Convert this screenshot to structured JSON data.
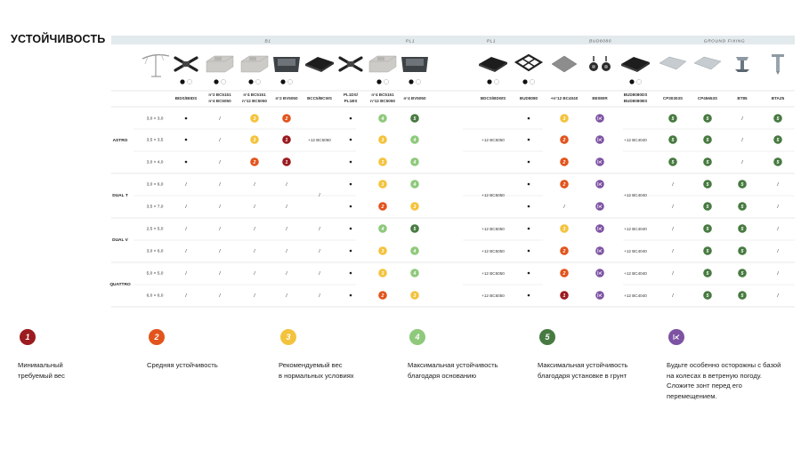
{
  "title": "УСТОЙЧИВОСТЬ",
  "groups": [
    {
      "label": "B1",
      "from": 0,
      "to": 6
    },
    {
      "label": "PL1",
      "from": 6,
      "to": 9
    },
    {
      "label": "PL1",
      "from": 9,
      "to": 10
    },
    {
      "label": "BUD8080",
      "from": 10,
      "to": 13
    },
    {
      "label": "GROUND FIXING",
      "from": 13,
      "to": 18
    }
  ],
  "columns": [
    {
      "h": [
        "BIDS/IBIDS"
      ],
      "img": "cross-base-icon",
      "dots": true
    },
    {
      "h": [
        "n°2 BC5151",
        "n°4 BC5050"
      ],
      "img": "concrete-slab-icon",
      "dots": true
    },
    {
      "h": [
        "n°4 BC5151",
        "n°12 BC5050"
      ],
      "img": "concrete-slab-icon",
      "dots": true
    },
    {
      "h": [
        "n°2 BV5050"
      ],
      "img": "planter-base-icon",
      "dots": true
    },
    {
      "h": [
        "BCC5/BCWS"
      ],
      "img": "black-cover-icon",
      "dots": false
    },
    {
      "h": [
        "PL1DS/",
        "PL1BS"
      ],
      "img": "cross-base-icon",
      "dots": false
    },
    {
      "h": [
        "n°4 BC5151",
        "n°12 BC5050"
      ],
      "img": "concrete-slab-icon",
      "dots": true
    },
    {
      "h": [
        "n°4 BV5050"
      ],
      "img": "planter-base-icon",
      "dots": true
    },
    {
      "h": [
        "BDCS/BDWS"
      ],
      "img": "black-cover-icon",
      "dots": true
    },
    {
      "h": [
        "BUD8080"
      ],
      "img": "frame-base-icon",
      "dots": true
    },
    {
      "h": [
        "+n°12 BC4040"
      ],
      "img": "grey-plate-icon",
      "dots": false
    },
    {
      "h": [
        "BE080R"
      ],
      "img": "wheels-icon",
      "dots": false
    },
    {
      "h": [
        "BUD8080DS",
        "BUD8080BS"
      ],
      "img": "black-cover-icon",
      "dots": true
    },
    {
      "h": [
        "CP30303S"
      ],
      "img": "ground-plate-icon",
      "dots": false
    },
    {
      "h": [
        "CP45653S"
      ],
      "img": "ground-plate-icon",
      "dots": false
    },
    {
      "h": [
        "BT85"
      ],
      "img": "bracket-icon",
      "dots": false
    },
    {
      "h": [
        "BTAZ5"
      ],
      "img": "ground-spike-icon",
      "dots": false
    }
  ],
  "models": [
    {
      "name": "ASTRO",
      "rows": [
        0,
        2
      ]
    },
    {
      "name": "DUAL T",
      "rows": [
        3,
        4
      ]
    },
    {
      "name": "DUAL V",
      "rows": [
        5,
        6
      ]
    },
    {
      "name": "QUATTRO",
      "rows": [
        7,
        8
      ]
    }
  ],
  "merged": [
    {
      "col": 4,
      "from": 0,
      "to": 2,
      "text": "+12 BC5050"
    },
    {
      "col": 4,
      "from": 3,
      "to": 4,
      "text": "/"
    },
    {
      "col": 8,
      "from": 0,
      "to": 2,
      "text": "+12 BC5050"
    },
    {
      "col": 12,
      "from": 0,
      "to": 2,
      "text": "+12 BC4040"
    },
    {
      "col": 8,
      "from": 3,
      "to": 4,
      "text": "+12 BC5050"
    },
    {
      "col": 12,
      "from": 3,
      "to": 4,
      "text": "+12 BC4040"
    }
  ],
  "rows": [
    {
      "size": "3,0 × 3,0",
      "cells": [
        "•",
        "/",
        "3",
        "2",
        null,
        "•",
        "4",
        "5",
        null,
        "•",
        "3",
        "R",
        null,
        "5",
        "5",
        "/",
        "5"
      ]
    },
    {
      "size": "3,5 × 3,5",
      "cells": [
        "•",
        "/",
        "3",
        "1",
        null,
        "•",
        "3",
        "4",
        null,
        "•",
        "2",
        "R",
        null,
        "5",
        "5",
        "/",
        "5"
      ]
    },
    {
      "size": "3,0 × 4,0",
      "cells": [
        "•",
        "/",
        "2",
        "1",
        null,
        "•",
        "3",
        "4",
        null,
        "•",
        "2",
        "R",
        null,
        "5",
        "5",
        "/",
        "5"
      ]
    },
    {
      "size": "3,0 × 6,0",
      "cells": [
        "/",
        "/",
        "/",
        "/",
        null,
        "•",
        "3",
        "4",
        null,
        "•",
        "2",
        "R",
        null,
        "/",
        "5",
        "5",
        "/"
      ]
    },
    {
      "size": "3,5 × 7,0",
      "cells": [
        "/",
        "/",
        "/",
        "/",
        null,
        "•",
        "2",
        "3",
        null,
        "•",
        "/",
        "R",
        null,
        "/",
        "5",
        "5",
        "/"
      ]
    },
    {
      "size": "2,5 × 5,0",
      "cells": [
        "/",
        "/",
        "/",
        "/",
        "/",
        "•",
        "4",
        "5",
        "+12 BC5050",
        "•",
        "3",
        "R",
        "+12 BC4040",
        "/",
        "5",
        "5",
        "/"
      ]
    },
    {
      "size": "3,0 × 6,0",
      "cells": [
        "/",
        "/",
        "/",
        "/",
        "/",
        "•",
        "3",
        "4",
        "+12 BC5050",
        "•",
        "2",
        "R",
        "+12 BC4040",
        "/",
        "5",
        "5",
        "/"
      ]
    },
    {
      "size": "5,0 × 5,0",
      "cells": [
        "/",
        "/",
        "/",
        "/",
        "/",
        "•",
        "3",
        "4",
        "+12 BC5050",
        "•",
        "2",
        "R",
        "+12 BC4040",
        "/",
        "5",
        "5",
        "/"
      ]
    },
    {
      "size": "6,0 × 6,0",
      "cells": [
        "/",
        "/",
        "/",
        "/",
        "/",
        "•",
        "2",
        "3",
        "+12 BC5050",
        "•",
        "1",
        "R",
        "+12 BC4040",
        "/",
        "5",
        "5",
        "/"
      ]
    }
  ],
  "ratings": {
    "1": {
      "label": "1",
      "color": "#9b1b1f"
    },
    "2": {
      "label": "2",
      "color": "#e2541c"
    },
    "3": {
      "label": "3",
      "color": "#f4c33e"
    },
    "4": {
      "label": "4",
      "color": "#8fc97c"
    },
    "5": {
      "label": "5",
      "color": "#477a40"
    },
    "R": {
      "label": "",
      "color": "#7d52a3"
    }
  },
  "legend": [
    {
      "key": "1",
      "lines": [
        "Минимальный",
        "требуемый вес"
      ]
    },
    {
      "key": "2",
      "lines": [
        "Средняя устойчивость"
      ]
    },
    {
      "key": "3",
      "lines": [
        "Рекомендуемый вес",
        "в нормальных условиях"
      ]
    },
    {
      "key": "4",
      "lines": [
        "Максимальная устойчивость",
        "благодаря основанию"
      ]
    },
    {
      "key": "5",
      "lines": [
        "Максимальная устойчивость",
        "благодаря установке в грунт"
      ]
    },
    {
      "key": "R",
      "lines": [
        "Будьте особенно осторожны с базой",
        "на колесах в ветреную погоду.",
        "Сложите зонт перед его",
        "перемещением."
      ]
    }
  ]
}
